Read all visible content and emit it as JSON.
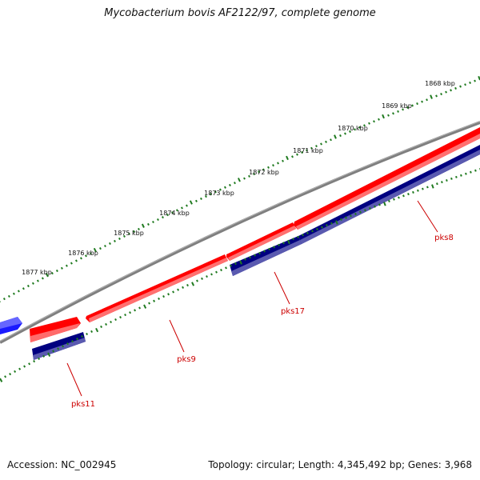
{
  "title": "Mycobacterium bovis AF2122/97, complete genome",
  "footer": {
    "accession": "Accession: NC_002945",
    "summary": "Topology: circular; Length: 4,345,492 bp; Genes: 3,968"
  },
  "colors": {
    "forward_feature": "#ff0000",
    "reverse_feature": "#000080",
    "other_feature": "#1a1aff",
    "backbone": "#808080",
    "tick": "#1f7a1f",
    "label_line": "#cc0000"
  },
  "scale_labels": [
    "1868 kbp",
    "1869 kbp",
    "1870 kbp",
    "1871 kbp",
    "1872 kbp",
    "1873 kbp",
    "1874 kbp",
    "1875 kbp",
    "1876 kbp",
    "1877 kbp"
  ],
  "genes": [
    "pks8",
    "pks17",
    "pks9",
    "pks11"
  ]
}
